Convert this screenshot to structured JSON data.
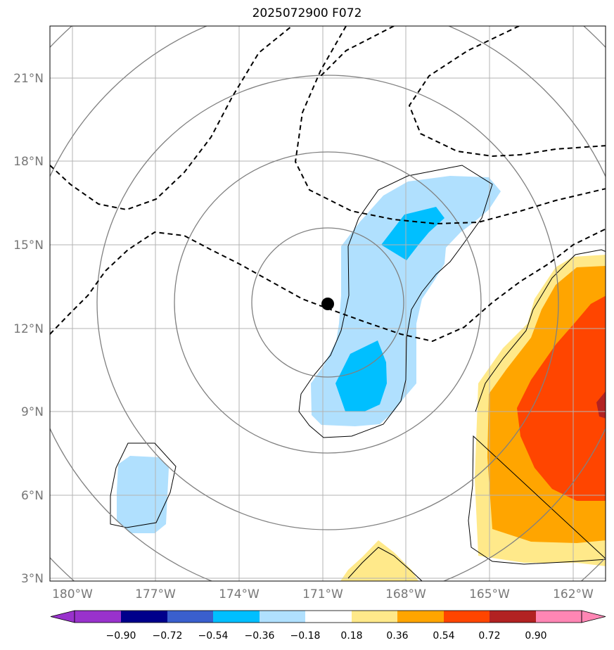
{
  "title": "2025072900 F072",
  "map": {
    "lat_labels": [
      "3°N",
      "6°N",
      "9°N",
      "12°N",
      "15°N",
      "18°N",
      "21°N"
    ],
    "lon_labels": [
      "180°W",
      "177°W",
      "174°W",
      "171°W",
      "168°W",
      "165°W",
      "162°W"
    ],
    "lat_range": [
      2.9,
      22.8
    ],
    "lon_range": [
      -180.8,
      -160.9
    ],
    "storm_center": {
      "lon": -170.8,
      "lat": 12.9
    },
    "grid": true
  },
  "colorbar": {
    "tick_labels": [
      "−0.90",
      "−0.72",
      "−0.54",
      "−0.36",
      "−0.18",
      "0.18",
      "0.36",
      "0.54",
      "0.72",
      "0.90"
    ],
    "colors": [
      "#9932cc",
      "#00008b",
      "#3a5fcd",
      "#00bfff",
      "#b0e0fe",
      "#ffffff",
      "#ffe98a",
      "#ffa500",
      "#ff4500",
      "#b22222",
      "#ff86b4"
    ],
    "extend": "both"
  }
}
